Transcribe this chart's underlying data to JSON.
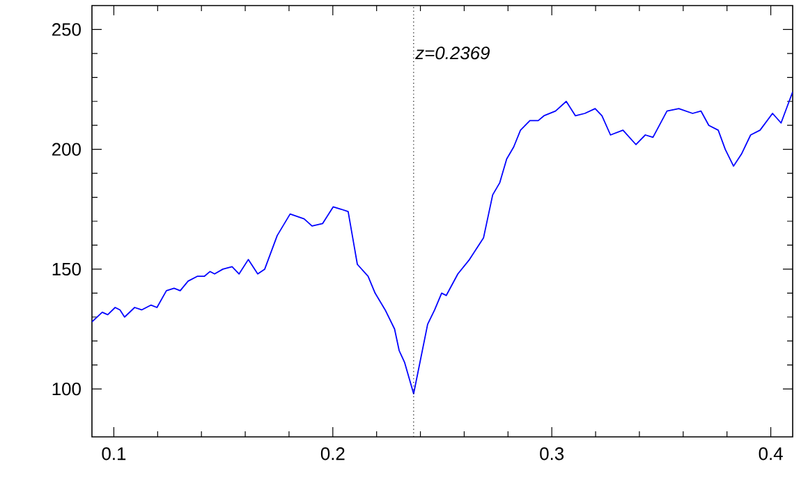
{
  "chart_data": {
    "type": "line",
    "xlim": [
      0.09,
      0.41
    ],
    "ylim": [
      80,
      260
    ],
    "xticks": [
      0.1,
      0.2,
      0.3,
      0.4
    ],
    "yticks": [
      100,
      150,
      200,
      250
    ],
    "grid": false,
    "marker": "none",
    "line_style": "solid",
    "ref_lines": [
      {
        "axis": "x",
        "value": 0.2369,
        "label": "z=0.2369",
        "color": "#000000",
        "line_style": "dotted"
      }
    ],
    "series": [
      {
        "color": "#0000ff",
        "x": [
          0.09,
          0.0947,
          0.0972,
          0.1006,
          0.1028,
          0.1049,
          0.1095,
          0.1127,
          0.117,
          0.1197,
          0.124,
          0.1275,
          0.1303,
          0.1339,
          0.1381,
          0.1413,
          0.1439,
          0.146,
          0.1498,
          0.154,
          0.1572,
          0.1614,
          0.1657,
          0.1689,
          0.1746,
          0.1805,
          0.1837,
          0.1869,
          0.1905,
          0.1953,
          0.2002,
          0.2038,
          0.207,
          0.2112,
          0.2161,
          0.2193,
          0.2239,
          0.2282,
          0.2303,
          0.2328,
          0.2369,
          0.2433,
          0.2465,
          0.2497,
          0.2518,
          0.2571,
          0.2624,
          0.2688,
          0.273,
          0.2762,
          0.2794,
          0.2826,
          0.2857,
          0.29,
          0.2938,
          0.2964,
          0.3017,
          0.3066,
          0.3108,
          0.3151,
          0.3198,
          0.3229,
          0.3268,
          0.3325,
          0.3384,
          0.3427,
          0.3462,
          0.3526,
          0.358,
          0.3643,
          0.3681,
          0.3717,
          0.376,
          0.3792,
          0.383,
          0.3866,
          0.3908,
          0.3951,
          0.4008,
          0.4047,
          0.41
        ],
        "values": [
          128,
          132,
          131,
          134,
          133,
          130,
          134,
          133,
          135,
          134,
          141,
          142,
          141,
          145,
          147,
          147,
          149,
          148,
          150,
          151,
          148,
          154,
          148,
          150,
          164,
          173,
          172,
          171,
          168,
          169,
          176,
          175,
          174,
          152,
          147,
          140,
          133,
          125,
          116,
          111,
          98,
          127,
          133,
          140,
          139,
          148,
          154,
          163,
          181,
          186,
          196,
          201,
          208,
          212,
          212,
          214,
          216,
          220,
          214,
          215,
          217,
          214,
          206,
          208,
          202,
          206,
          205,
          216,
          217,
          215,
          216,
          210,
          208,
          200,
          193,
          198,
          206,
          208,
          215,
          211,
          224
        ]
      }
    ]
  }
}
